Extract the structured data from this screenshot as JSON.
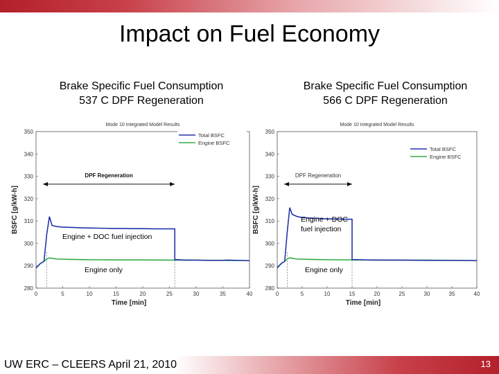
{
  "slide": {
    "title": "Impact on Fuel Economy",
    "footer": "UW ERC – CLEERS April 21, 2010",
    "page_number": "13",
    "accent_color": "#b3202a"
  },
  "chart_data": [
    {
      "type": "line",
      "heading": [
        "Brake Specific Fuel Consumption",
        "537 C DPF Regeneration"
      ],
      "title": "Mode 10 Integrated Model Results",
      "xlabel": "Time [min]",
      "ylabel": "BSFC [g/kW-h]",
      "xlim": [
        0,
        40
      ],
      "ylim": [
        280,
        350
      ],
      "xticks": [
        "0",
        "5",
        "10",
        "15",
        "20",
        "25",
        "30",
        "35",
        "40"
      ],
      "yticks": [
        "350",
        "340",
        "330",
        "320",
        "310",
        "300",
        "290",
        "280"
      ],
      "legend_position": "top-right",
      "series": [
        {
          "name": "Total BSFC",
          "color": "#2233aa",
          "x": [
            0,
            0.8,
            1.5,
            2.0,
            2.5,
            3.0,
            4.0,
            5.0,
            6.0,
            8.0,
            10.0,
            12.0,
            14.0,
            16.0,
            18.0,
            20.0,
            22.0,
            24.0,
            26.0,
            26.0,
            28.0,
            30.0,
            32.0,
            34.0,
            36.0,
            38.0,
            40.0
          ],
          "y": [
            289,
            291,
            292,
            304,
            312,
            308,
            307.5,
            307.3,
            307.2,
            307.0,
            306.9,
            306.8,
            306.7,
            306.7,
            306.6,
            306.6,
            306.5,
            306.5,
            306.5,
            292.8,
            292.5,
            292.5,
            292.4,
            292.4,
            292.5,
            292.4,
            292.3
          ]
        },
        {
          "name": "Engine BSFC",
          "color": "#33aa44",
          "x": [
            0,
            0.8,
            1.5,
            2.0,
            2.5,
            3.0,
            4.0,
            6.0,
            8.0,
            10.0,
            15.0,
            20.0,
            26.0,
            28.0,
            30.0,
            35.0,
            40.0
          ],
          "y": [
            289,
            291,
            292,
            293,
            293.5,
            293.3,
            293.0,
            292.9,
            292.8,
            292.7,
            292.6,
            292.6,
            292.5,
            292.5,
            292.5,
            292.4,
            292.3
          ]
        }
      ],
      "annotations": {
        "span_label": "DPF Regeneration",
        "span": [
          0,
          26
        ],
        "upper": "Engine + DOC fuel injection",
        "lower": "Engine only"
      }
    },
    {
      "type": "line",
      "heading": [
        "Brake Specific Fuel Consumption",
        "566 C DPF Regeneration"
      ],
      "title": "Mode 10 Integrated Model Results",
      "xlabel": "Time [min]",
      "ylabel": "BSFC [g/kW-h]",
      "xlim": [
        0,
        40
      ],
      "ylim": [
        280,
        350
      ],
      "xticks": [
        "0",
        "5",
        "10",
        "15",
        "20",
        "25",
        "30",
        "35",
        "40"
      ],
      "yticks": [
        "350",
        "340",
        "330",
        "320",
        "310",
        "300",
        "290",
        "280"
      ],
      "legend_position": "top-right",
      "series": [
        {
          "name": "Total BSFC",
          "color": "#2233aa",
          "x": [
            0,
            0.8,
            1.5,
            2.0,
            2.5,
            3.0,
            4.0,
            5.0,
            6.0,
            8.0,
            10.0,
            12.0,
            14.0,
            15.0,
            15.0,
            18.0,
            20.0,
            25.0,
            30.0,
            35.0,
            40.0
          ],
          "y": [
            289,
            291,
            292,
            305,
            316,
            313,
            312,
            311.6,
            311.4,
            311.2,
            311.0,
            310.9,
            310.8,
            310.8,
            292.8,
            292.6,
            292.5,
            292.5,
            292.4,
            292.4,
            292.3
          ]
        },
        {
          "name": "Engine BSFC",
          "color": "#33aa44",
          "x": [
            0,
            0.8,
            1.5,
            2.0,
            2.5,
            3.0,
            4.0,
            6.0,
            8.0,
            10.0,
            15.0,
            20.0,
            25.0,
            30.0,
            35.0,
            40.0
          ],
          "y": [
            289,
            291,
            292,
            293,
            293.6,
            293.3,
            293.0,
            292.9,
            292.8,
            292.7,
            292.6,
            292.6,
            292.5,
            292.5,
            292.4,
            292.3
          ]
        }
      ],
      "annotations": {
        "span_label": "DPF Regeneration",
        "span": [
          0,
          15
        ],
        "upper": "Engine + DOC fuel injection",
        "lower": "Engine only"
      }
    }
  ]
}
